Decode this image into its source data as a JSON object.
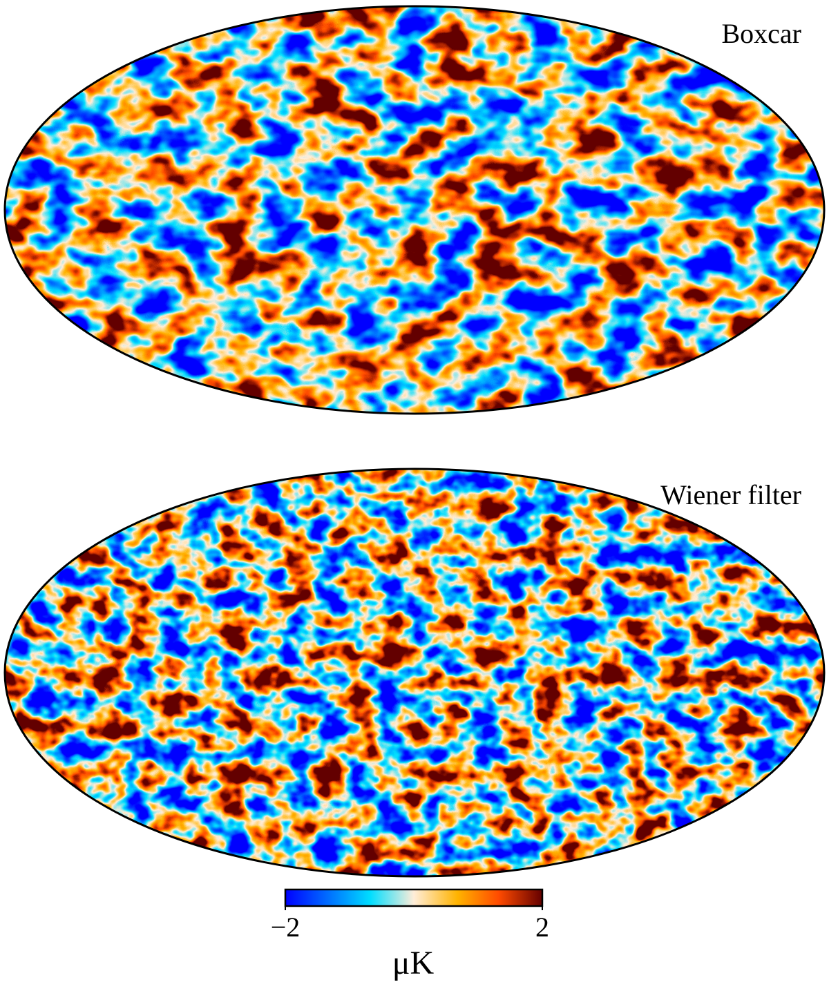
{
  "panels": [
    {
      "label": "Boxcar"
    },
    {
      "label": "Wiener filter"
    }
  ],
  "colorbar": {
    "label": "μK",
    "lim": [
      -2,
      2
    ],
    "ticks": [
      {
        "value": -2,
        "label": "−2"
      },
      2
    ]
  }
}
